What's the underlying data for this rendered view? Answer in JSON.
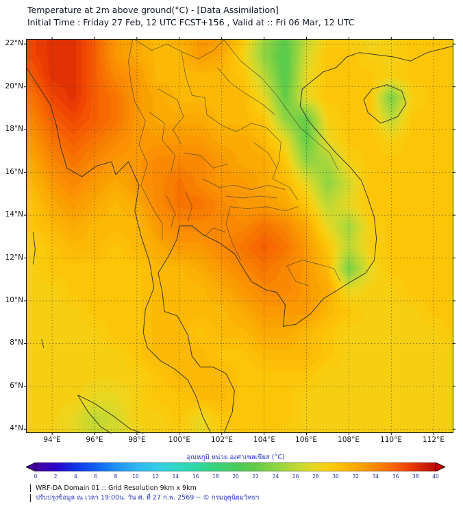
{
  "header": {
    "title_line1": "Temperature at 2m above ground(°C) - [Data Assimilation]",
    "title_line2": "Initial Time : Friday 27 Feb, 12 UTC FCST+156 , Valid at :: Fri 06 Mar, 12 UTC"
  },
  "axes": {
    "x_tick_values": [
      94,
      96,
      98,
      100,
      102,
      104,
      106,
      108,
      110,
      112
    ],
    "x_tick_labels": [
      "94°E",
      "96°E",
      "98°E",
      "100°E",
      "102°E",
      "104°E",
      "106°E",
      "108°E",
      "110°E",
      "112°E"
    ],
    "y_tick_values": [
      22,
      20,
      18,
      16,
      14,
      12,
      10,
      8,
      6,
      4
    ],
    "y_tick_labels": [
      "22°N",
      "20°N",
      "18°N",
      "16°N",
      "14°N",
      "12°N",
      "10°N",
      "8°N",
      "6°N",
      "4°N"
    ]
  },
  "colorbar": {
    "label": "อุณหภูมิ หน่วย องศาเซลเซียส (°C)",
    "range": [
      0,
      40
    ],
    "tick_labels": [
      "0",
      "2",
      "4",
      "6",
      "8",
      "10",
      "12",
      "14",
      "16",
      "18",
      "20",
      "22",
      "24",
      "26",
      "28",
      "30",
      "32",
      "34",
      "36",
      "38",
      "40"
    ]
  },
  "footer": {
    "line1": "WRF-DA Domain 01 :: Grid Resolution 9km x 9km",
    "line2": "ปรับปรุงข้อมูล ณ เวลา 19:00น. วัน ศ. ที่ 27 ก.พ. 2569 -- © กรมอุตุนิยมวิทยา"
  },
  "chart_data": {
    "type": "heatmap",
    "title": "Temperature at 2m above ground (°C) - WRF-DA Data Assimilation, FCST+156, valid Fri 06 Mar 12 UTC",
    "units": "°C",
    "xlim": [
      92.8,
      112.9
    ],
    "ylim": [
      3.85,
      22.2
    ],
    "colorbar_range": [
      0,
      40
    ],
    "grid_lon": [
      93,
      94,
      95,
      96,
      97,
      98,
      99,
      100,
      101,
      102,
      103,
      104,
      105,
      106,
      107,
      108,
      109,
      110,
      111,
      112,
      113
    ],
    "grid_lat": [
      22.5,
      21.5,
      20.5,
      19.5,
      18.5,
      17.5,
      16.5,
      15.5,
      14.5,
      13.5,
      12.5,
      11.5,
      10.5,
      9.5,
      8.5,
      7.5,
      6.5,
      5.5,
      4.5,
      3.5
    ],
    "values": [
      [
        37,
        38,
        38,
        36,
        33,
        32,
        31,
        32,
        33,
        33,
        30,
        25,
        22,
        26,
        29,
        29,
        28,
        29,
        30,
        30,
        30
      ],
      [
        37,
        38,
        38,
        36,
        33,
        32,
        31,
        31,
        33,
        32,
        29,
        24,
        21,
        27,
        30,
        30,
        29,
        29,
        30,
        30,
        30
      ],
      [
        36,
        38,
        38,
        36,
        34,
        33,
        31,
        31,
        31,
        31,
        30,
        26,
        21,
        28,
        30,
        30,
        30,
        29,
        30,
        30,
        30
      ],
      [
        35,
        37,
        38,
        36,
        35,
        33,
        32,
        31,
        31,
        31,
        31,
        28,
        22,
        28,
        30,
        30,
        30,
        23,
        29,
        30,
        30
      ],
      [
        34,
        36,
        37,
        36,
        35,
        33,
        32,
        32,
        32,
        31,
        31,
        30,
        24,
        22,
        29,
        30,
        30,
        26,
        30,
        30,
        30
      ],
      [
        33,
        35,
        36,
        35,
        34,
        33,
        33,
        33,
        33,
        32,
        32,
        31,
        28,
        22,
        28,
        30,
        30,
        29,
        30,
        30,
        30
      ],
      [
        32,
        34,
        35,
        34,
        33,
        33,
        34,
        34,
        34,
        33,
        32,
        32,
        30,
        24,
        25,
        29,
        30,
        30,
        30,
        30,
        30
      ],
      [
        31,
        33,
        34,
        33,
        32,
        33,
        34,
        35,
        34,
        33,
        33,
        32,
        31,
        28,
        24,
        27,
        30,
        30,
        30,
        30,
        30
      ],
      [
        30,
        32,
        33,
        32,
        31,
        32,
        34,
        35,
        35,
        34,
        33,
        33,
        32,
        30,
        26,
        28,
        30,
        30,
        30,
        30,
        30
      ],
      [
        30,
        31,
        32,
        31,
        31,
        31,
        33,
        34,
        34,
        34,
        34,
        35,
        34,
        32,
        28,
        25,
        29,
        30,
        30,
        30,
        30
      ],
      [
        29,
        30,
        31,
        31,
        30,
        31,
        32,
        33,
        33,
        34,
        35,
        36,
        35,
        33,
        30,
        26,
        29,
        30,
        30,
        30,
        30
      ],
      [
        29,
        30,
        30,
        30,
        30,
        30,
        31,
        31,
        32,
        33,
        34,
        35,
        34,
        33,
        31,
        23,
        28,
        30,
        30,
        30,
        30
      ],
      [
        29,
        29,
        30,
        30,
        30,
        30,
        31,
        31,
        31,
        32,
        33,
        34,
        34,
        33,
        32,
        28,
        29,
        29,
        30,
        30,
        30
      ],
      [
        29,
        29,
        29,
        30,
        30,
        30,
        31,
        31,
        31,
        31,
        32,
        33,
        33,
        33,
        31,
        30,
        29,
        29,
        29,
        30,
        30
      ],
      [
        29,
        29,
        29,
        29,
        30,
        30,
        31,
        31,
        30,
        31,
        31,
        32,
        32,
        31,
        30,
        29,
        29,
        29,
        29,
        29,
        30
      ],
      [
        29,
        29,
        29,
        29,
        29,
        30,
        31,
        31,
        31,
        30,
        30,
        31,
        31,
        31,
        30,
        29,
        29,
        29,
        29,
        29,
        29
      ],
      [
        29,
        29,
        29,
        29,
        29,
        29,
        30,
        31,
        31,
        31,
        30,
        30,
        30,
        30,
        29,
        29,
        29,
        29,
        29,
        29,
        29
      ],
      [
        29,
        29,
        29,
        28,
        28,
        29,
        30,
        30,
        31,
        31,
        30,
        30,
        30,
        29,
        29,
        29,
        29,
        29,
        29,
        29,
        29
      ],
      [
        29,
        29,
        28,
        26,
        27,
        29,
        29,
        30,
        28,
        30,
        30,
        30,
        30,
        29,
        29,
        29,
        29,
        29,
        29,
        29,
        29
      ],
      [
        29,
        29,
        28,
        27,
        27,
        28,
        29,
        29,
        28,
        29,
        30,
        30,
        29,
        29,
        29,
        29,
        29,
        29,
        29,
        29,
        29
      ]
    ],
    "color_scale_stops": [
      [
        0,
        "#4400a0"
      ],
      [
        2,
        "#2a00c8"
      ],
      [
        4,
        "#1133e8"
      ],
      [
        6,
        "#1060f0"
      ],
      [
        8,
        "#1e90f5"
      ],
      [
        10,
        "#2fb4f0"
      ],
      [
        12,
        "#34cce8"
      ],
      [
        14,
        "#30d8c8"
      ],
      [
        16,
        "#2ed8a4"
      ],
      [
        18,
        "#38d37c"
      ],
      [
        20,
        "#48cb5a"
      ],
      [
        22,
        "#63cc47"
      ],
      [
        24,
        "#8ed442"
      ],
      [
        26,
        "#bcd936"
      ],
      [
        28,
        "#e8d722"
      ],
      [
        29,
        "#f7cf12"
      ],
      [
        30,
        "#fcc508"
      ],
      [
        31,
        "#fbb804"
      ],
      [
        32,
        "#fba903"
      ],
      [
        33,
        "#fa9902"
      ],
      [
        34,
        "#f98802"
      ],
      [
        35,
        "#f87401"
      ],
      [
        36,
        "#f65e01"
      ],
      [
        37,
        "#f04601"
      ],
      [
        38,
        "#e23102"
      ],
      [
        40,
        "#b80b02"
      ]
    ]
  },
  "map_overlay": {
    "coastlines": [
      [
        [
          92.8,
          20.9
        ],
        [
          93.3,
          20.1
        ],
        [
          93.9,
          19.2
        ],
        [
          94.2,
          18.2
        ],
        [
          94.4,
          17.2
        ],
        [
          94.7,
          16.2
        ],
        [
          95.4,
          15.8
        ],
        [
          96.1,
          16.3
        ],
        [
          96.8,
          16.5
        ],
        [
          97.0,
          15.9
        ],
        [
          97.6,
          16.5
        ],
        [
          98.1,
          15.4
        ],
        [
          97.9,
          14.2
        ],
        [
          98.2,
          13.0
        ],
        [
          98.6,
          11.8
        ],
        [
          98.8,
          10.6
        ],
        [
          98.4,
          9.6
        ],
        [
          98.3,
          8.5
        ],
        [
          98.5,
          7.8
        ],
        [
          99.1,
          7.2
        ],
        [
          99.8,
          6.8
        ],
        [
          100.4,
          6.3
        ],
        [
          100.8,
          5.5
        ],
        [
          101.1,
          4.6
        ],
        [
          101.5,
          3.8
        ]
      ],
      [
        [
          102.1,
          3.8
        ],
        [
          102.5,
          4.8
        ],
        [
          102.6,
          5.8
        ],
        [
          102.2,
          6.6
        ],
        [
          101.6,
          6.9
        ],
        [
          101.0,
          6.9
        ],
        [
          100.6,
          7.4
        ],
        [
          100.4,
          8.4
        ],
        [
          99.9,
          9.3
        ],
        [
          99.3,
          9.5
        ],
        [
          99.2,
          10.4
        ],
        [
          99.0,
          11.3
        ],
        [
          99.5,
          12.1
        ],
        [
          99.9,
          12.9
        ],
        [
          100.0,
          13.5
        ],
        [
          100.6,
          13.5
        ],
        [
          101.1,
          13.1
        ],
        [
          101.9,
          12.7
        ],
        [
          102.6,
          12.2
        ],
        [
          102.9,
          11.7
        ],
        [
          103.4,
          10.9
        ],
        [
          104.1,
          10.5
        ],
        [
          104.6,
          10.4
        ],
        [
          105.0,
          9.8
        ],
        [
          104.9,
          8.8
        ],
        [
          105.5,
          8.9
        ],
        [
          106.2,
          9.4
        ],
        [
          106.8,
          10.1
        ],
        [
          107.3,
          10.4
        ],
        [
          108.1,
          10.9
        ],
        [
          108.8,
          11.3
        ],
        [
          109.2,
          11.9
        ],
        [
          109.3,
          12.9
        ],
        [
          109.2,
          13.9
        ],
        [
          108.9,
          14.8
        ],
        [
          108.6,
          15.6
        ],
        [
          108.1,
          16.2
        ],
        [
          107.4,
          16.9
        ],
        [
          106.7,
          17.7
        ],
        [
          106.1,
          18.4
        ],
        [
          105.7,
          19.1
        ],
        [
          105.8,
          19.9
        ],
        [
          106.3,
          20.3
        ],
        [
          106.8,
          20.7
        ],
        [
          107.4,
          20.9
        ],
        [
          107.9,
          21.4
        ],
        [
          108.5,
          21.6
        ],
        [
          109.3,
          21.5
        ],
        [
          110.1,
          21.4
        ],
        [
          110.9,
          21.2
        ],
        [
          111.7,
          21.6
        ],
        [
          112.5,
          21.8
        ],
        [
          112.9,
          21.9
        ]
      ],
      [
        [
          108.7,
          19.4
        ],
        [
          109.1,
          19.9
        ],
        [
          109.8,
          20.1
        ],
        [
          110.5,
          19.8
        ],
        [
          110.7,
          19.2
        ],
        [
          110.3,
          18.6
        ],
        [
          109.5,
          18.3
        ],
        [
          108.9,
          18.8
        ],
        [
          108.7,
          19.4
        ]
      ],
      [
        [
          95.2,
          5.6
        ],
        [
          96.0,
          5.2
        ],
        [
          96.9,
          4.6
        ],
        [
          97.7,
          4.0
        ],
        [
          98.3,
          3.8
        ]
      ],
      [
        [
          95.2,
          5.6
        ],
        [
          95.7,
          4.8
        ],
        [
          96.3,
          4.1
        ],
        [
          96.8,
          3.8
        ]
      ],
      [
        [
          93.1,
          13.2
        ],
        [
          93.2,
          12.4
        ],
        [
          93.1,
          11.7
        ]
      ],
      [
        [
          93.5,
          8.2
        ],
        [
          93.6,
          7.8
        ]
      ]
    ],
    "borders": [
      [
        [
          97.8,
          22.2
        ],
        [
          97.6,
          21.2
        ],
        [
          97.7,
          20.3
        ],
        [
          97.9,
          19.3
        ],
        [
          98.4,
          18.4
        ],
        [
          98.1,
          17.3
        ],
        [
          98.5,
          16.4
        ],
        [
          98.2,
          15.4
        ],
        [
          98.7,
          14.4
        ],
        [
          99.2,
          13.6
        ],
        [
          99.2,
          12.8
        ]
      ],
      [
        [
          100.1,
          21.6
        ],
        [
          100.3,
          20.5
        ],
        [
          100.6,
          19.6
        ],
        [
          101.2,
          19.5
        ],
        [
          101.3,
          18.7
        ],
        [
          102.0,
          18.2
        ],
        [
          102.7,
          17.9
        ],
        [
          103.4,
          18.3
        ],
        [
          104.1,
          18.1
        ],
        [
          104.8,
          17.4
        ],
        [
          104.7,
          16.5
        ],
        [
          104.4,
          15.7
        ],
        [
          105.2,
          15.3
        ],
        [
          105.6,
          14.7
        ]
      ],
      [
        [
          102.4,
          14.4
        ],
        [
          103.2,
          14.3
        ],
        [
          104.1,
          14.4
        ],
        [
          105.0,
          14.2
        ],
        [
          105.6,
          14.4
        ]
      ],
      [
        [
          102.4,
          14.4
        ],
        [
          102.2,
          13.6
        ],
        [
          102.5,
          12.7
        ],
        [
          102.9,
          11.9
        ]
      ],
      [
        [
          102.1,
          22.2
        ],
        [
          102.9,
          21.2
        ],
        [
          103.9,
          20.4
        ],
        [
          104.6,
          19.6
        ],
        [
          105.1,
          18.9
        ],
        [
          105.7,
          18.1
        ],
        [
          106.5,
          17.4
        ],
        [
          107.1,
          16.9
        ],
        [
          107.5,
          16.1
        ]
      ],
      [
        [
          97.9,
          22.2
        ],
        [
          98.7,
          21.7
        ],
        [
          99.4,
          22.0
        ],
        [
          100.2,
          21.6
        ],
        [
          100.9,
          21.3
        ],
        [
          101.6,
          21.7
        ],
        [
          102.1,
          22.2
        ]
      ],
      [
        [
          105.0,
          11.6
        ],
        [
          105.8,
          11.9
        ],
        [
          106.6,
          11.7
        ],
        [
          107.3,
          11.5
        ],
        [
          107.6,
          10.9
        ]
      ],
      [
        [
          101.8,
          20.9
        ],
        [
          102.4,
          20.2
        ],
        [
          103.1,
          19.7
        ],
        [
          103.9,
          19.2
        ],
        [
          104.5,
          18.7
        ]
      ],
      [
        [
          99.0,
          19.9
        ],
        [
          99.9,
          19.4
        ],
        [
          100.2,
          18.6
        ],
        [
          99.7,
          18.0
        ],
        [
          100.1,
          17.3
        ]
      ],
      [
        [
          98.6,
          18.8
        ],
        [
          99.3,
          18.3
        ],
        [
          99.2,
          17.5
        ],
        [
          99.8,
          16.8
        ],
        [
          99.6,
          16.0
        ]
      ],
      [
        [
          100.2,
          16.9
        ],
        [
          101.0,
          16.8
        ],
        [
          101.6,
          16.2
        ],
        [
          102.3,
          16.4
        ]
      ],
      [
        [
          101.1,
          15.7
        ],
        [
          101.9,
          15.3
        ],
        [
          102.6,
          15.4
        ],
        [
          103.4,
          15.2
        ],
        [
          104.2,
          15.4
        ],
        [
          105.0,
          15.2
        ]
      ],
      [
        [
          102.2,
          14.9
        ],
        [
          103.0,
          14.8
        ],
        [
          103.8,
          14.9
        ],
        [
          104.6,
          14.8
        ]
      ],
      [
        [
          100.3,
          15.1
        ],
        [
          100.6,
          14.4
        ],
        [
          100.4,
          13.7
        ]
      ],
      [
        [
          99.4,
          14.9
        ],
        [
          99.8,
          14.1
        ],
        [
          99.6,
          13.4
        ]
      ],
      [
        [
          103.5,
          17.4
        ],
        [
          104.2,
          16.9
        ],
        [
          104.6,
          16.2
        ]
      ],
      [
        [
          101.2,
          13.0
        ],
        [
          101.6,
          13.4
        ],
        [
          102.2,
          13.2
        ]
      ],
      [
        [
          105.1,
          11.6
        ],
        [
          105.5,
          10.9
        ],
        [
          106.1,
          10.7
        ]
      ]
    ]
  }
}
